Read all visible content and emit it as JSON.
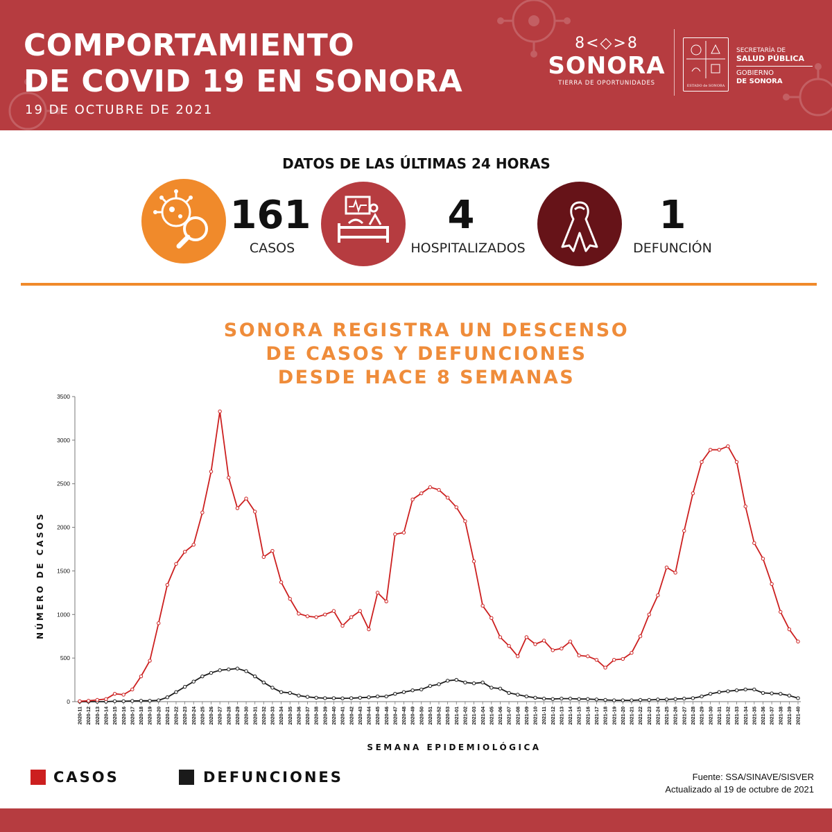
{
  "header": {
    "title_line1": "COMPORTAMIENTO",
    "title_line2": "DE COVID 19 EN SONORA",
    "date": "19 DE OCTUBRE DE 2021",
    "logo_pattern": "8<◇>8",
    "logo_name": "SONORA",
    "logo_tagline": "TIERRA DE OPORTUNIDADES",
    "shield_caption": "ESTADO de SONORA",
    "sec_line1": "SECRETARÍA DE",
    "sec_line2": "SALUD PÚBLICA",
    "gov_line1": "GOBIERNO",
    "gov_line2": "DE SONORA"
  },
  "summary": {
    "heading": "DATOS DE LAS ÚLTIMAS 24 HORAS",
    "cases_value": "161",
    "cases_label": "CASOS",
    "hosp_value": "4",
    "hosp_label": "HOSPITALIZADOS",
    "deaths_value": "1",
    "deaths_label": "DEFUNCIÓN"
  },
  "headline": {
    "line1": "SONORA REGISTRA UN DESCENSO",
    "line2": "DE CASOS Y DEFUNCIONES",
    "line3": "DESDE HACE 8 SEMANAS"
  },
  "legend": {
    "cases": "CASOS",
    "deaths": "DEFUNCIONES"
  },
  "source": {
    "line1": "Fuente: SSA/SINAVE/SISVER",
    "line2": "Actualizado al 19 de octubre de 2021"
  },
  "colors": {
    "brand_red": "#b63c40",
    "brand_orange": "#f08a2b",
    "dark_maroon": "#661318",
    "cases_line": "#cc1f1f",
    "deaths_line": "#1a1a1a"
  },
  "chart_data": {
    "type": "line",
    "title": "",
    "xlabel": "SEMANA EPIDEMIOLÓGICA",
    "ylabel": "NÚMERO DE CASOS",
    "ylim": [
      0,
      3500
    ],
    "yticks": [
      0,
      500,
      1000,
      1500,
      2000,
      2500,
      3000,
      3500
    ],
    "grid": false,
    "legend_position": "bottom-left",
    "x": [
      "2020-11",
      "2020-12",
      "2020-13",
      "2020-14",
      "2020-15",
      "2020-16",
      "2020-17",
      "2020-18",
      "2020-19",
      "2020-20",
      "2020-21",
      "2020-22",
      "2020-23",
      "2020-24",
      "2020-25",
      "2020-26",
      "2020-27",
      "2020-28",
      "2020-29",
      "2020-30",
      "2020-31",
      "2020-32",
      "2020-33",
      "2020-34",
      "2020-35",
      "2020-36",
      "2020-37",
      "2020-38",
      "2020-39",
      "2020-40",
      "2020-41",
      "2020-42",
      "2020-43",
      "2020-44",
      "2020-45",
      "2020-46",
      "2020-47",
      "2020-48",
      "2020-49",
      "2020-50",
      "2020-51",
      "2020-52",
      "2020-53",
      "2021-01",
      "2021-02",
      "2021-03",
      "2021-04",
      "2021-05",
      "2021-06",
      "2021-07",
      "2021-08",
      "2021-09",
      "2021-10",
      "2021-11",
      "2021-12",
      "2021-13",
      "2021-14",
      "2021-15",
      "2021-16",
      "2021-17",
      "2021-18",
      "2021-19",
      "2021-20",
      "2021-21",
      "2021-22",
      "2021-23",
      "2021-24",
      "2021-25",
      "2021-26",
      "2021-27",
      "2021-28",
      "2021-29",
      "2021-30",
      "2021-31",
      "2021-32",
      "2021-33",
      "2021-34",
      "2021-35",
      "2021-36",
      "2021-37",
      "2021-38",
      "2021-39",
      "2021-40"
    ],
    "series": [
      {
        "name": "CASOS",
        "color": "#cc1f1f",
        "values": [
          5,
          10,
          20,
          30,
          90,
          80,
          140,
          290,
          470,
          900,
          1340,
          1580,
          1720,
          1800,
          2170,
          2640,
          3330,
          2570,
          2220,
          2330,
          2180,
          1660,
          1730,
          1370,
          1180,
          1010,
          980,
          970,
          1000,
          1040,
          870,
          970,
          1040,
          830,
          1250,
          1150,
          1920,
          1940,
          2320,
          2390,
          2460,
          2430,
          2340,
          2230,
          2070,
          1610,
          1100,
          960,
          740,
          640,
          520,
          740,
          660,
          700,
          590,
          610,
          690,
          530,
          520,
          480,
          390,
          480,
          490,
          560,
          750,
          1000,
          1220,
          1540,
          1480,
          1960,
          2390,
          2750,
          2890,
          2890,
          2930,
          2750,
          2240,
          1820,
          1640,
          1350,
          1030,
          830,
          690
        ]
      },
      {
        "name": "DEFUNCIONES",
        "color": "#1a1a1a",
        "values": [
          0,
          0,
          0,
          0,
          5,
          5,
          8,
          10,
          10,
          15,
          50,
          110,
          170,
          230,
          290,
          330,
          360,
          370,
          380,
          350,
          290,
          220,
          160,
          110,
          100,
          70,
          55,
          45,
          40,
          40,
          38,
          40,
          45,
          50,
          60,
          60,
          90,
          110,
          130,
          140,
          180,
          200,
          240,
          250,
          220,
          210,
          220,
          160,
          150,
          100,
          80,
          60,
          45,
          35,
          30,
          35,
          35,
          30,
          30,
          25,
          20,
          15,
          15,
          15,
          20,
          20,
          25,
          25,
          30,
          35,
          40,
          60,
          90,
          110,
          120,
          130,
          140,
          140,
          100,
          95,
          90,
          70,
          40
        ]
      }
    ]
  }
}
